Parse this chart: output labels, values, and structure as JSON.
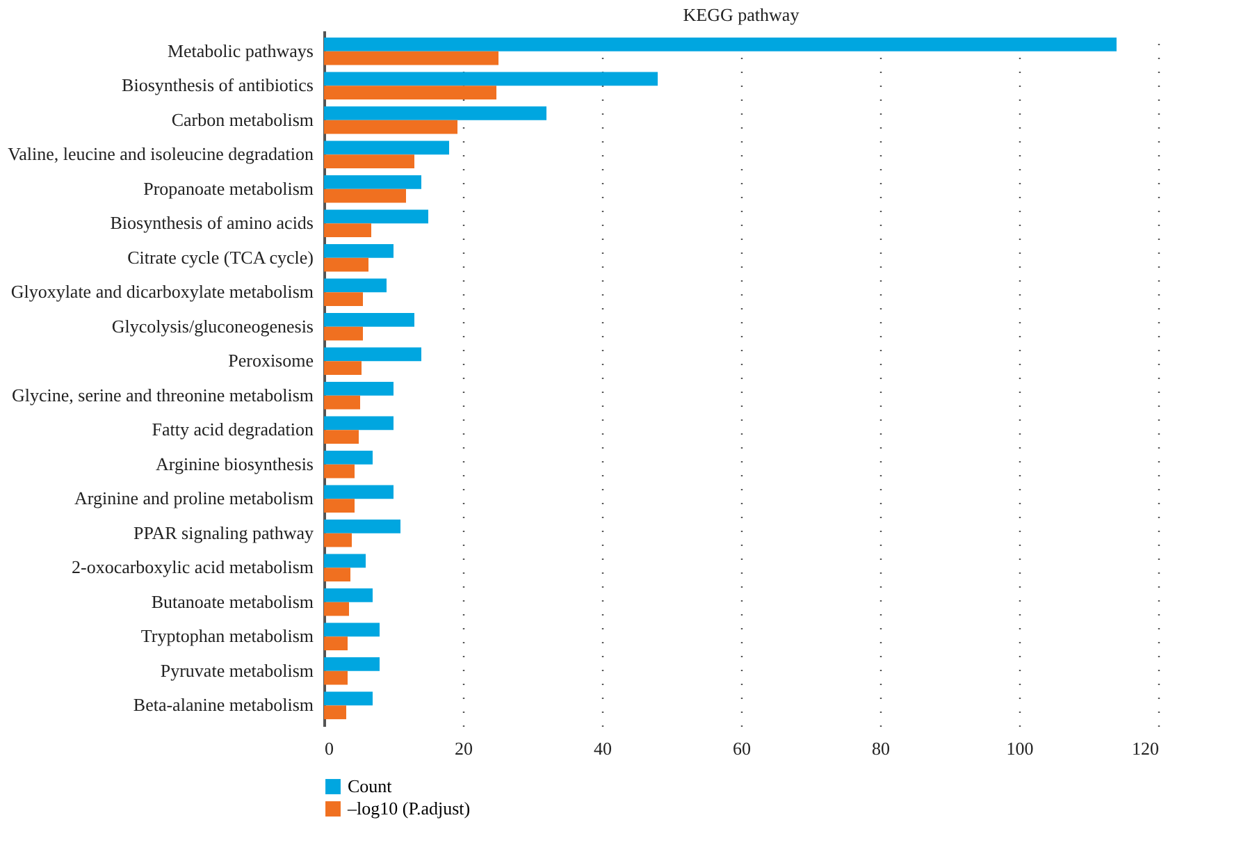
{
  "chart_data": {
    "type": "bar",
    "orientation": "horizontal",
    "title": "KEGG pathway",
    "categories": [
      "Metabolic pathways",
      "Biosynthesis of antibiotics",
      "Carbon metabolism",
      "Valine, leucine and isoleucine degradation",
      "Propanoate metabolism",
      "Biosynthesis of amino acids",
      "Citrate cycle (TCA cycle)",
      "Glyoxylate and dicarboxylate metabolism",
      "Glycolysis/gluconeogenesis",
      "Peroxisome",
      "Glycine, serine and threonine metabolism",
      "Fatty acid degradation",
      "Arginine biosynthesis",
      "Arginine and proline metabolism",
      "PPAR signaling pathway",
      "2-oxocarboxylic acid metabolism",
      "Butanoate metabolism",
      "Tryptophan metabolism",
      "Pyruvate metabolism",
      "Beta-alanine metabolism"
    ],
    "series": [
      {
        "name": "Count",
        "color": "#00a6e0",
        "values": [
          114,
          48,
          32,
          18,
          14,
          15,
          10,
          9,
          13,
          14,
          10,
          10,
          7,
          10,
          11,
          6,
          7,
          8,
          8,
          7
        ]
      },
      {
        "name": "–log10 (P.adjust)",
        "color": "#f07020",
        "values": [
          25.1,
          24.8,
          19.2,
          13,
          11.8,
          6.8,
          6.4,
          5.6,
          5.6,
          5.4,
          5.2,
          5.0,
          4.4,
          4.4,
          4.0,
          3.8,
          3.6,
          3.4,
          3.4,
          3.2
        ]
      }
    ],
    "xlim": [
      0,
      120
    ],
    "xticks": [
      0,
      20,
      40,
      60,
      80,
      100,
      120
    ],
    "grid": "x",
    "legend": "bottom left"
  }
}
